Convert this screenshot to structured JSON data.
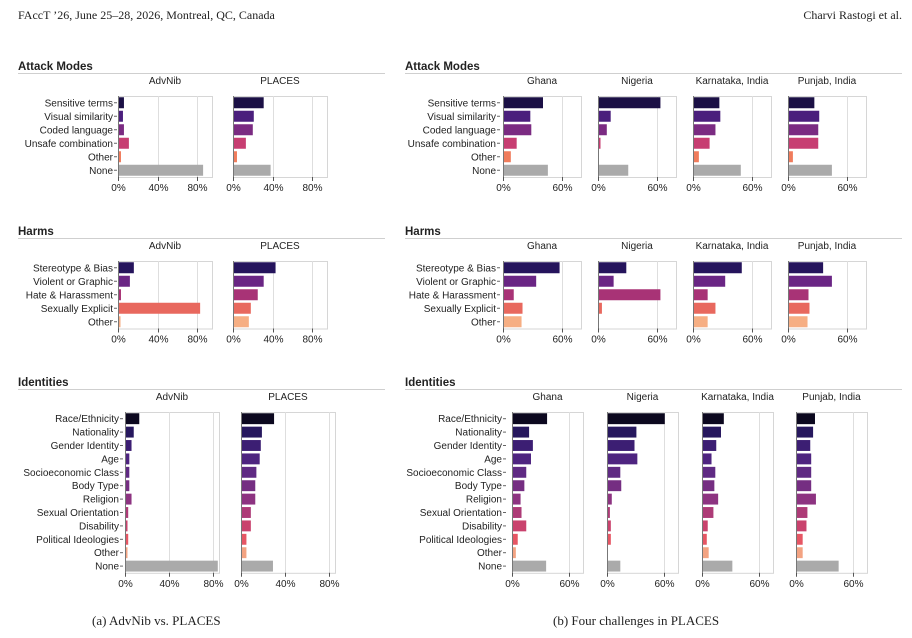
{
  "header": {
    "left": "FAccT ’26, June 25–28, 2026, Montreal, QC, Canada",
    "right": "Charvi Rastogi et al."
  },
  "captions": {
    "a": "(a) AdvNib vs. PLACES",
    "b": "(b) Four challenges in PLACES"
  },
  "colors": {
    "rows": {
      "Attack Modes": [
        "#1b1045",
        "#4b1f7d",
        "#7b2b82",
        "#c73e72",
        "#f07c5c",
        "#aaaaaa"
      ],
      "Harms": [
        "#25145c",
        "#6a2584",
        "#a83376",
        "#e8685e",
        "#f6ae83"
      ],
      "Identities": [
        "#0c081f",
        "#27185e",
        "#3c1e73",
        "#4e2480",
        "#5f2a83",
        "#752e82",
        "#8d3381",
        "#ad3b77",
        "#c9426d",
        "#e65664",
        "#f3a382",
        "#aaaaaa"
      ]
    }
  },
  "chart_data": [
    {
      "type": "bar",
      "orientation": "horizontal",
      "section": "Attack Modes",
      "categories": [
        "Sensitive terms",
        "Visual similarity",
        "Coded language",
        "Unsafe combination",
        "Other",
        "None"
      ],
      "ticks": [
        "0%",
        "40%",
        "80%"
      ],
      "xlim": [
        0,
        95
      ],
      "panels": [
        {
          "title": "AdvNib",
          "values": [
            5,
            4,
            5,
            10,
            2,
            85
          ]
        },
        {
          "title": "PLACES",
          "values": [
            30,
            20,
            19,
            12,
            3,
            37
          ]
        }
      ]
    },
    {
      "type": "bar",
      "orientation": "horizontal",
      "section": "Attack Modes",
      "categories": [
        "Sensitive terms",
        "Visual similarity",
        "Coded language",
        "Unsafe combination",
        "Other",
        "None"
      ],
      "ticks": [
        "0%",
        "60%"
      ],
      "xlim": [
        0,
        80
      ],
      "panels": [
        {
          "title": "Ghana",
          "values": [
            40,
            27,
            28,
            13,
            7,
            45
          ]
        },
        {
          "title": "Nigeria",
          "values": [
            63,
            12,
            8,
            1,
            0,
            30
          ]
        },
        {
          "title": "Karnataka, India",
          "values": [
            26,
            27,
            22,
            16,
            5,
            48
          ]
        },
        {
          "title": "Punjab, India",
          "values": [
            26,
            31,
            30,
            30,
            4,
            44
          ]
        }
      ]
    },
    {
      "type": "bar",
      "orientation": "horizontal",
      "section": "Harms",
      "categories": [
        "Stereotype & Bias",
        "Violent or Graphic",
        "Hate & Harassment",
        "Sexually Explicit",
        "Other"
      ],
      "ticks": [
        "0%",
        "40%",
        "80%"
      ],
      "xlim": [
        0,
        95
      ],
      "panels": [
        {
          "title": "AdvNib",
          "values": [
            15,
            11,
            2,
            82,
            1
          ]
        },
        {
          "title": "PLACES",
          "values": [
            42,
            30,
            24,
            17,
            15
          ]
        }
      ]
    },
    {
      "type": "bar",
      "orientation": "horizontal",
      "section": "Harms",
      "categories": [
        "Stereotype & Bias",
        "Violent or Graphic",
        "Hate & Harassment",
        "Sexually Explicit",
        "Other"
      ],
      "ticks": [
        "0%",
        "60%"
      ],
      "xlim": [
        0,
        80
      ],
      "panels": [
        {
          "title": "Ghana",
          "values": [
            57,
            33,
            10,
            19,
            18
          ]
        },
        {
          "title": "Nigeria",
          "values": [
            28,
            15,
            63,
            3,
            0
          ]
        },
        {
          "title": "Karnataka, India",
          "values": [
            49,
            32,
            14,
            22,
            14
          ]
        },
        {
          "title": "Punjab, India",
          "values": [
            35,
            44,
            20,
            21,
            19
          ]
        }
      ]
    },
    {
      "type": "bar",
      "orientation": "horizontal",
      "section": "Identities",
      "categories": [
        "Race/Ethnicity",
        "Nationality",
        "Gender Identity",
        "Age",
        "Socioeconomic Class",
        "Body Type",
        "Religion",
        "Sexual Orientation",
        "Disability",
        "Political Ideologies",
        "Other",
        "None"
      ],
      "ticks": [
        "0%",
        "40%",
        "80%"
      ],
      "xlim": [
        0,
        85
      ],
      "panels": [
        {
          "title": "AdvNib",
          "values": [
            12,
            7,
            5,
            3,
            3,
            3,
            5,
            2,
            1,
            2,
            1,
            83
          ]
        },
        {
          "title": "PLACES",
          "values": [
            29,
            18,
            17,
            16,
            13,
            12,
            12,
            8,
            8,
            4,
            4,
            28
          ]
        }
      ]
    },
    {
      "type": "bar",
      "orientation": "horizontal",
      "section": "Identities",
      "categories": [
        "Race/Ethnicity",
        "Nationality",
        "Gender Identity",
        "Age",
        "Socioeconomic Class",
        "Body Type",
        "Religion",
        "Sexual Orientation",
        "Disability",
        "Political Ideologies",
        "Other",
        "None"
      ],
      "ticks": [
        "0%",
        "60%"
      ],
      "xlim": [
        0,
        75
      ],
      "panels": [
        {
          "title": "Ghana",
          "values": [
            36,
            17,
            21,
            19,
            14,
            12,
            8,
            9,
            14,
            5,
            3,
            35
          ]
        },
        {
          "title": "Nigeria",
          "values": [
            60,
            30,
            28,
            31,
            13,
            14,
            4,
            2,
            3,
            3,
            0,
            13
          ]
        },
        {
          "title": "Karnataka, India",
          "values": [
            22,
            19,
            14,
            9,
            13,
            12,
            16,
            11,
            5,
            4,
            6,
            31
          ]
        },
        {
          "title": "Punjab, India",
          "values": [
            19,
            17,
            14,
            15,
            15,
            15,
            20,
            11,
            10,
            6,
            6,
            44
          ]
        }
      ]
    }
  ]
}
